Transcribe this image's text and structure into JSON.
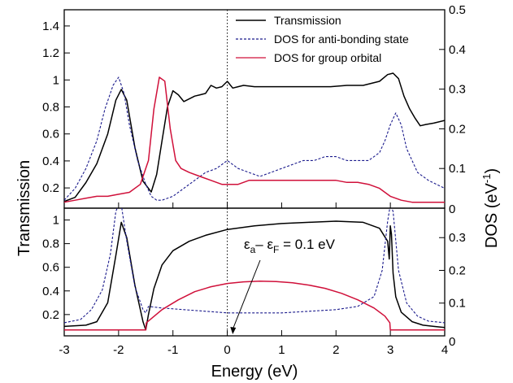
{
  "chart_data": {
    "type": "line",
    "xlabel": "Energy (eV)",
    "ylabel_left": "Transmission",
    "ylabel_right": "DOS (eV",
    "ylabel_right_exp": "-1",
    "ylabel_right_close": ")",
    "xlim": [
      -3,
      4
    ],
    "x_ticks": [
      "-3",
      "-2",
      "-1",
      "0",
      "1",
      "2",
      "3",
      "4"
    ],
    "x_tick_values": [
      -3,
      -2,
      -1,
      0,
      1,
      2,
      3,
      4
    ],
    "fermi_line_x": 0,
    "colors": {
      "transmission": "#000000",
      "dos_antibonding": "#1a1a8c",
      "dos_group": "#d0103a"
    },
    "legend": [
      "Transmission",
      "DOS for anti-bonding state",
      "DOS for group orbital"
    ],
    "panels": [
      {
        "name": "top",
        "left_ylim": [
          0.05,
          1.52
        ],
        "right_ylim": [
          0,
          0.5
        ],
        "left_ticks": [
          "0.2",
          "0.4",
          "0.6",
          "0.8",
          "1",
          "1.2",
          "1.4"
        ],
        "left_tick_values": [
          0.2,
          0.4,
          0.6,
          0.8,
          1.0,
          1.2,
          1.4
        ],
        "right_ticks": [
          "0.1",
          "0.2",
          "0.3",
          "0.4",
          "0.5"
        ],
        "right_tick_values": [
          0.1,
          0.2,
          0.3,
          0.4,
          0.5
        ],
        "series": [
          {
            "name": "Transmission",
            "axis": "left",
            "style": "solid",
            "color": "#000000",
            "x": [
              -3.0,
              -2.8,
              -2.6,
              -2.4,
              -2.2,
              -2.05,
              -1.95,
              -1.85,
              -1.7,
              -1.55,
              -1.4,
              -1.3,
              -1.2,
              -1.1,
              -1.0,
              -0.9,
              -0.8,
              -0.7,
              -0.6,
              -0.5,
              -0.4,
              -0.3,
              -0.2,
              -0.1,
              0.0,
              0.1,
              0.2,
              0.3,
              0.5,
              0.7,
              1.0,
              1.3,
              1.6,
              1.9,
              2.2,
              2.5,
              2.8,
              2.95,
              3.05,
              3.15,
              3.25,
              3.35,
              3.45,
              3.55,
              3.65,
              3.8,
              4.0
            ],
            "y": [
              0.1,
              0.13,
              0.24,
              0.38,
              0.6,
              0.85,
              0.93,
              0.85,
              0.5,
              0.25,
              0.17,
              0.3,
              0.55,
              0.8,
              0.92,
              0.89,
              0.84,
              0.86,
              0.88,
              0.89,
              0.9,
              0.96,
              0.94,
              0.95,
              0.99,
              0.94,
              0.95,
              0.96,
              0.95,
              0.95,
              0.95,
              0.95,
              0.95,
              0.95,
              0.96,
              0.96,
              0.99,
              1.04,
              1.05,
              1.01,
              0.88,
              0.79,
              0.72,
              0.66,
              0.67,
              0.68,
              0.7
            ]
          },
          {
            "name": "DOS for anti-bonding state",
            "axis": "right",
            "style": "dashed",
            "color": "#1a1a8c",
            "x": [
              -3.0,
              -2.8,
              -2.6,
              -2.4,
              -2.25,
              -2.1,
              -2.0,
              -1.9,
              -1.8,
              -1.65,
              -1.5,
              -1.4,
              -1.3,
              -1.2,
              -1.0,
              -0.8,
              -0.6,
              -0.4,
              -0.2,
              0.0,
              0.2,
              0.4,
              0.6,
              0.8,
              1.0,
              1.2,
              1.4,
              1.6,
              1.8,
              2.0,
              2.2,
              2.4,
              2.6,
              2.8,
              2.9,
              3.0,
              3.1,
              3.2,
              3.3,
              3.5,
              3.7,
              3.85,
              4.0
            ],
            "y": [
              0.02,
              0.05,
              0.1,
              0.17,
              0.25,
              0.31,
              0.33,
              0.29,
              0.21,
              0.12,
              0.06,
              0.03,
              0.02,
              0.02,
              0.03,
              0.05,
              0.07,
              0.09,
              0.1,
              0.12,
              0.1,
              0.09,
              0.08,
              0.09,
              0.1,
              0.11,
              0.12,
              0.12,
              0.13,
              0.13,
              0.12,
              0.12,
              0.12,
              0.14,
              0.17,
              0.21,
              0.24,
              0.21,
              0.15,
              0.09,
              0.07,
              0.06,
              0.05
            ]
          },
          {
            "name": "DOS for group orbital",
            "axis": "right",
            "style": "solid",
            "color": "#d0103a",
            "x": [
              -3.0,
              -2.8,
              -2.6,
              -2.4,
              -2.2,
              -2.0,
              -1.8,
              -1.6,
              -1.45,
              -1.35,
              -1.25,
              -1.15,
              -1.05,
              -0.95,
              -0.85,
              -0.7,
              -0.5,
              -0.3,
              -0.1,
              0.0,
              0.2,
              0.4,
              0.6,
              0.8,
              1.0,
              1.2,
              1.4,
              1.6,
              1.8,
              2.0,
              2.2,
              2.4,
              2.6,
              2.8,
              3.0,
              3.2,
              3.4,
              3.6,
              3.8,
              4.0
            ],
            "y": [
              0.015,
              0.02,
              0.025,
              0.03,
              0.03,
              0.035,
              0.04,
              0.06,
              0.12,
              0.25,
              0.33,
              0.32,
              0.2,
              0.12,
              0.1,
              0.09,
              0.08,
              0.07,
              0.06,
              0.06,
              0.06,
              0.07,
              0.07,
              0.07,
              0.07,
              0.07,
              0.07,
              0.07,
              0.07,
              0.07,
              0.065,
              0.065,
              0.06,
              0.05,
              0.03,
              0.02,
              0.015,
              0.015,
              0.015,
              0.015
            ]
          }
        ]
      },
      {
        "name": "bottom",
        "left_ylim": [
          0.02,
          1.1
        ],
        "right_ylim": [
          0,
          0.39
        ],
        "left_ticks": [
          "0.2",
          "0.4",
          "0.6",
          "0.8",
          "1"
        ],
        "left_tick_values": [
          0.2,
          0.4,
          0.6,
          0.8,
          1.0
        ],
        "right_ticks": [
          "0.1",
          "0.2",
          "0.3"
        ],
        "right_tick_values": [
          0.1,
          0.2,
          0.3
        ],
        "series": [
          {
            "name": "Transmission",
            "axis": "left",
            "style": "solid",
            "color": "#000000",
            "x": [
              -3.0,
              -2.6,
              -2.4,
              -2.2,
              -2.05,
              -1.95,
              -1.85,
              -1.7,
              -1.55,
              -1.5,
              -1.45,
              -1.35,
              -1.2,
              -1.0,
              -0.7,
              -0.4,
              0.0,
              0.5,
              1.0,
              1.5,
              2.0,
              2.5,
              2.8,
              2.95,
              2.98,
              3.0,
              3.02,
              3.05,
              3.1,
              3.2,
              3.4,
              3.6,
              3.8,
              4.0
            ],
            "y": [
              0.1,
              0.11,
              0.14,
              0.3,
              0.7,
              0.98,
              0.85,
              0.45,
              0.14,
              0.07,
              0.2,
              0.42,
              0.62,
              0.74,
              0.82,
              0.87,
              0.92,
              0.95,
              0.97,
              0.98,
              0.99,
              0.98,
              0.93,
              0.82,
              0.67,
              0.95,
              0.88,
              0.55,
              0.35,
              0.22,
              0.14,
              0.11,
              0.1,
              0.09
            ]
          },
          {
            "name": "DOS for anti-bonding state",
            "axis": "right",
            "style": "dashed",
            "color": "#1a1a8c",
            "x": [
              -3.0,
              -2.7,
              -2.5,
              -2.3,
              -2.15,
              -2.05,
              -2.0,
              -1.95,
              -1.85,
              -1.7,
              -1.55,
              -1.5,
              -1.45,
              -1.2,
              -0.8,
              -0.4,
              0.0,
              0.5,
              1.0,
              1.5,
              2.0,
              2.4,
              2.7,
              2.85,
              2.95,
              3.0,
              3.05,
              3.15,
              3.3,
              3.5,
              3.7,
              4.0
            ],
            "y": [
              0.04,
              0.05,
              0.08,
              0.14,
              0.25,
              0.38,
              0.4,
              0.4,
              0.29,
              0.15,
              0.08,
              0.07,
              0.09,
              0.085,
              0.08,
              0.075,
              0.07,
              0.07,
              0.07,
              0.075,
              0.08,
              0.09,
              0.12,
              0.2,
              0.35,
              0.4,
              0.38,
              0.2,
              0.1,
              0.06,
              0.045,
              0.04
            ]
          },
          {
            "name": "DOS for group orbital",
            "axis": "right",
            "style": "solid",
            "color": "#d0103a",
            "x": [
              -3.0,
              -2.5,
              -2.0,
              -1.5,
              -1.49,
              -1.2,
              -0.9,
              -0.6,
              -0.3,
              0.0,
              0.3,
              0.6,
              0.9,
              1.2,
              1.5,
              1.8,
              2.1,
              2.4,
              2.7,
              2.9,
              2.99,
              3.0,
              3.5,
              4.0
            ],
            "y": [
              0.018,
              0.018,
              0.018,
              0.018,
              0.04,
              0.08,
              0.11,
              0.135,
              0.15,
              0.16,
              0.165,
              0.167,
              0.166,
              0.162,
              0.155,
              0.145,
              0.13,
              0.11,
              0.085,
              0.06,
              0.04,
              0.018,
              0.018,
              0.018
            ]
          }
        ]
      }
    ],
    "annotation": {
      "part_eps1": "ε",
      "sub_a": "a",
      "part_minus": "– ε",
      "sub_f": "F",
      "part_rest": " = 0.1 eV",
      "arrow_target_x": 0.1
    }
  }
}
